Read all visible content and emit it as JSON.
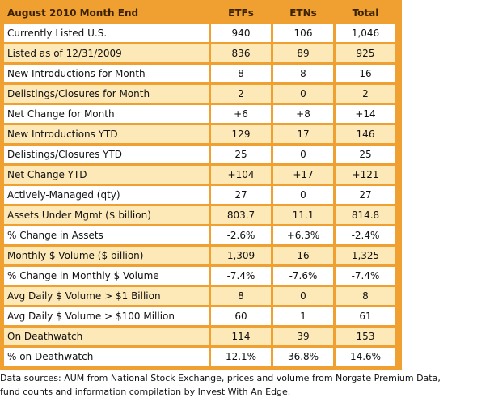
{
  "table": {
    "headers": [
      "August 2010 Month End",
      "ETFs",
      "ETNs",
      "Total"
    ],
    "rows": [
      [
        "Currently Listed U.S.",
        "940",
        "106",
        "1,046"
      ],
      [
        "Listed as of 12/31/2009",
        "836",
        "89",
        "925"
      ],
      [
        "New Introductions for Month",
        "8",
        "8",
        "16"
      ],
      [
        "Delistings/Closures for Month",
        "2",
        "0",
        "2"
      ],
      [
        "Net Change for Month",
        "+6",
        "+8",
        "+14"
      ],
      [
        "New Introductions YTD",
        "129",
        "17",
        "146"
      ],
      [
        "Delistings/Closures YTD",
        "25",
        "0",
        "25"
      ],
      [
        "Net Change YTD",
        "+104",
        "+17",
        "+121"
      ],
      [
        "Actively-Managed (qty)",
        "27",
        "0",
        "27"
      ],
      [
        "Assets Under Mgmt ($ billion)",
        "803.7",
        "11.1",
        "814.8"
      ],
      [
        "% Change in Assets",
        "-2.6%",
        "+6.3%",
        "-2.4%"
      ],
      [
        "Monthly $ Volume ($ billion)",
        "1,309",
        "16",
        "1,325"
      ],
      [
        "% Change in Monthly $ Volume",
        "-7.4%",
        "-7.6%",
        "-7.4%"
      ],
      [
        "Avg Daily $ Volume > $1 Billion",
        "8",
        "0",
        "8"
      ],
      [
        "Avg Daily $ Volume > $100 Million",
        "60",
        "1",
        "61"
      ],
      [
        "On Deathwatch",
        "114",
        "39",
        "153"
      ],
      [
        "% on Deathwatch",
        "12.1%",
        "36.8%",
        "14.6%"
      ]
    ]
  },
  "footnote": {
    "line1": "Data sources:  AUM from National Stock Exchange, prices and volume from Norgate Premium Data,",
    "line2": "fund counts and information compilation by Invest With An Edge."
  },
  "colors": {
    "header_bg": "#f0a030",
    "row_alt_bg": "#fde8b8",
    "row_bg": "#ffffff"
  }
}
